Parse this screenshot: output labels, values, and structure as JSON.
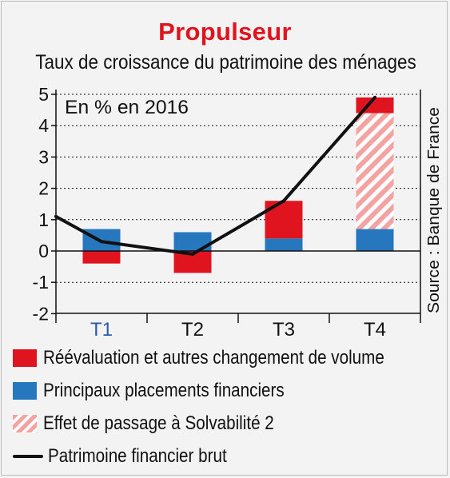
{
  "title": "Propulseur",
  "subtitle": "Taux de croissance du patrimoine des ménages",
  "unit_note": "En % en 2016",
  "source": "Source : Banque de France",
  "colors": {
    "revaluation": "#e0141e",
    "placements": "#2777bf",
    "solvabilite_hatch": "#f4a3a3",
    "line": "#111111",
    "title": "#e0141e",
    "t1_label": "#2d5aa8"
  },
  "legend": [
    {
      "label": "Réévaluation et autres changement de volume",
      "swatch": "red"
    },
    {
      "label": "Principaux placements financiers",
      "swatch": "blue"
    },
    {
      "label": "Effet de passage à Solvabilité 2",
      "swatch": "hatch"
    },
    {
      "label": "Patrimoine financier brut",
      "swatch": "line"
    }
  ],
  "chart_data": {
    "type": "bar",
    "stacked": true,
    "categories": [
      "T1",
      "T2",
      "T3",
      "T4"
    ],
    "ylim": [
      -2,
      5
    ],
    "yticks": [
      -2,
      -1,
      0,
      1,
      2,
      3,
      4,
      5
    ],
    "grid": "dotted horizontal",
    "series": [
      {
        "name": "Principaux placements financiers",
        "values": [
          0.7,
          0.6,
          0.4,
          0.7
        ]
      },
      {
        "name": "Effet de passage à Solvabilité 2",
        "values": [
          0,
          0,
          0,
          3.7
        ]
      },
      {
        "name": "Réévaluation et autres changement de volume",
        "values": [
          -0.4,
          -0.7,
          1.2,
          0.5
        ]
      }
    ],
    "line": {
      "name": "Patrimoine financier brut",
      "x": [
        0.0,
        0.5,
        1.5,
        2.5,
        3.5
      ],
      "y": [
        1.1,
        0.3,
        -0.1,
        1.6,
        4.9
      ]
    }
  }
}
